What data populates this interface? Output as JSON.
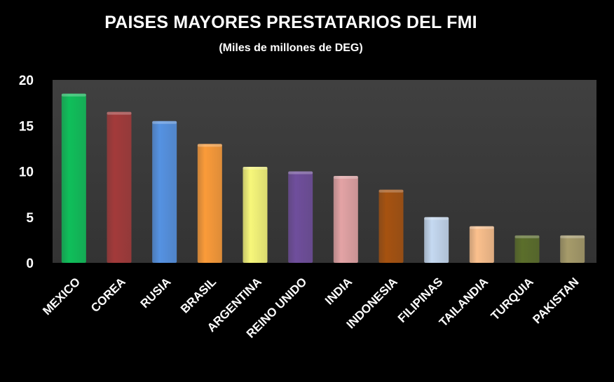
{
  "chart_data": {
    "type": "bar",
    "title": "PAISES MAYORES PRESTATARIOS DEL FMI",
    "subtitle": "(Miles de millones de DEG)",
    "xlabel": "",
    "ylabel": "",
    "ylim": [
      0,
      20
    ],
    "yticks": [
      0,
      5,
      10,
      15,
      20
    ],
    "grid": false,
    "legend": "none",
    "categories": [
      "MEXICO",
      "COREA",
      "RUSIA",
      "BRASIL",
      "ARGENTINA",
      "REINO UNIDO",
      "INDIA",
      "INDONESIA",
      "FILIPINAS",
      "TAILANDIA",
      "TURQUIA",
      "PAKISTAN"
    ],
    "values": [
      18.5,
      16.5,
      15.5,
      13,
      10.5,
      10,
      9.5,
      8,
      5,
      4,
      3,
      3
    ],
    "colors": [
      "#0fbf5a",
      "#a33a3a",
      "#5592e2",
      "#fb9b39",
      "#f7f77a",
      "#6f4e9c",
      "#e3a3a5",
      "#a65210",
      "#c5d9f1",
      "#fbc08d",
      "#5b6e2b",
      "#a69b6a"
    ],
    "plot_background": "#404040",
    "text_color": "#ffffff"
  }
}
